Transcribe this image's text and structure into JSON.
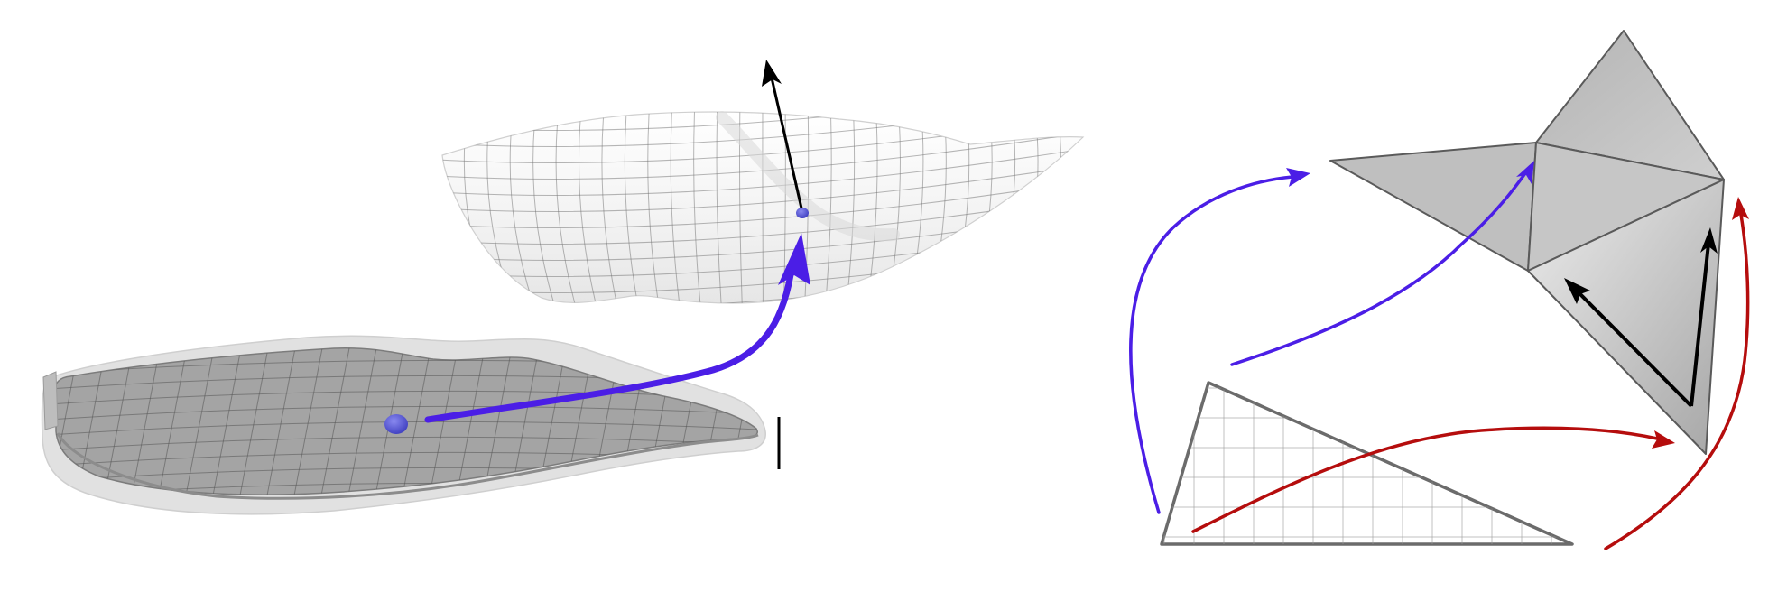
{
  "figure": {
    "left_panel": {
      "point_color": "#5a5ad8",
      "map_arrow_color": "#4b1ee6",
      "normal_arrow_color": "#000000",
      "slab_color": "#a4a4a4",
      "surface_color": "#f4f4f4",
      "grid_color": "#555555"
    },
    "right_panel": {
      "blue_arrow_color": "#4b1ee6",
      "red_arrow_color": "#b50d0d",
      "tangent_arrow_color": "#000000",
      "flat_face_color": "#bdbdbd",
      "triangle_edge_color": "#6b6b6b"
    }
  }
}
